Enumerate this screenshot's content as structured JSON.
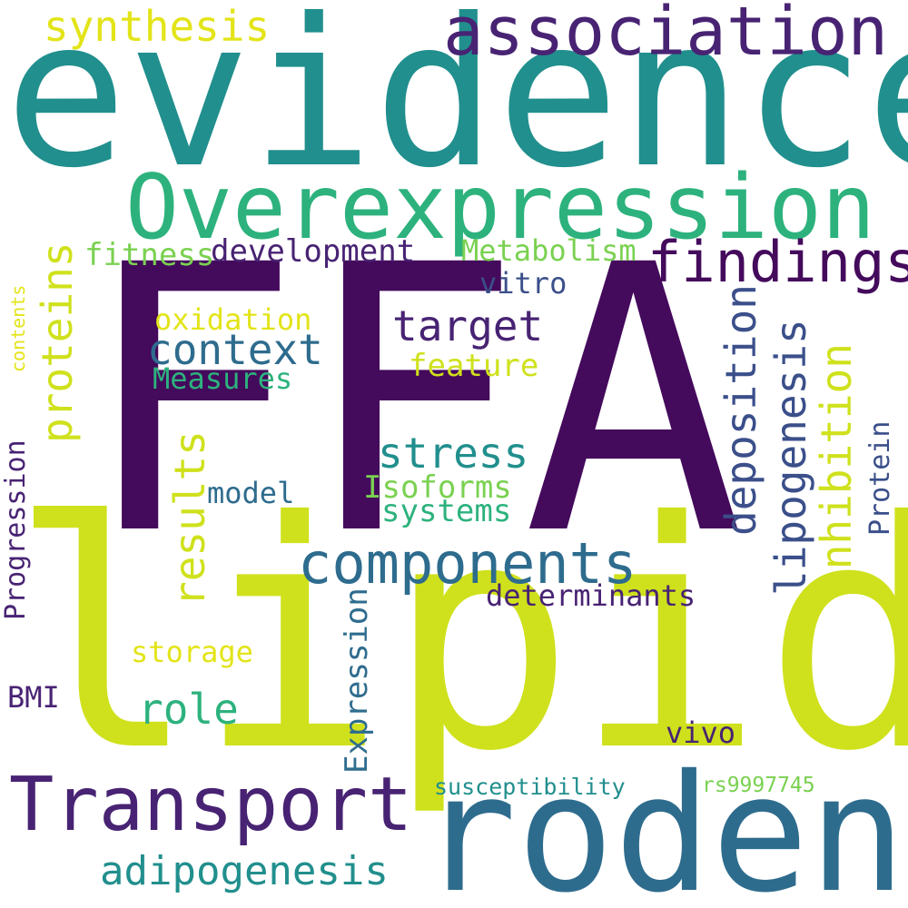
{
  "words": {
    "lipid": "lipid",
    "ffa": "FFA",
    "evidence": "evidence",
    "rodent": "rodent",
    "overexpression": "Overexpression",
    "association": "association",
    "transport": "Transport",
    "components": "components",
    "findings": "findings",
    "deposition": "deposition",
    "lipogenesis": "lipogenesis",
    "inhibition": "inhibition",
    "adipogenesis": "adipogenesis",
    "proteins": "proteins",
    "results": "results",
    "target": "target",
    "context": "context",
    "stress": "stress",
    "role": "role",
    "synthesis": "synthesis",
    "development": "development",
    "metabolism": "Metabolism",
    "expression": "Expression",
    "progression": "Progression",
    "fitness": "fitness",
    "oxidation": "oxidation",
    "vitro": "vitro",
    "feature": "feature",
    "measures": "Measures",
    "isoforms": "Isoforms",
    "systems": "systems",
    "model": "model",
    "determinants": "determinants",
    "storage": "storage",
    "protein": "Protein",
    "bmi": "BMI",
    "vivo": "vivo",
    "susceptibility": "susceptibility",
    "rs9997745": "rs9997745",
    "contents": "contents"
  },
  "palette": {
    "dark_purple": "#440a5c",
    "indigo": "#482373",
    "navy": "#3b4f8a",
    "blue": "#2e6c8e",
    "teal": "#218f8d",
    "green": "#2db27d",
    "light_green": "#7ad151",
    "lime": "#cfe11c",
    "yellow": "#e3e418",
    "background": "#ffffff"
  }
}
